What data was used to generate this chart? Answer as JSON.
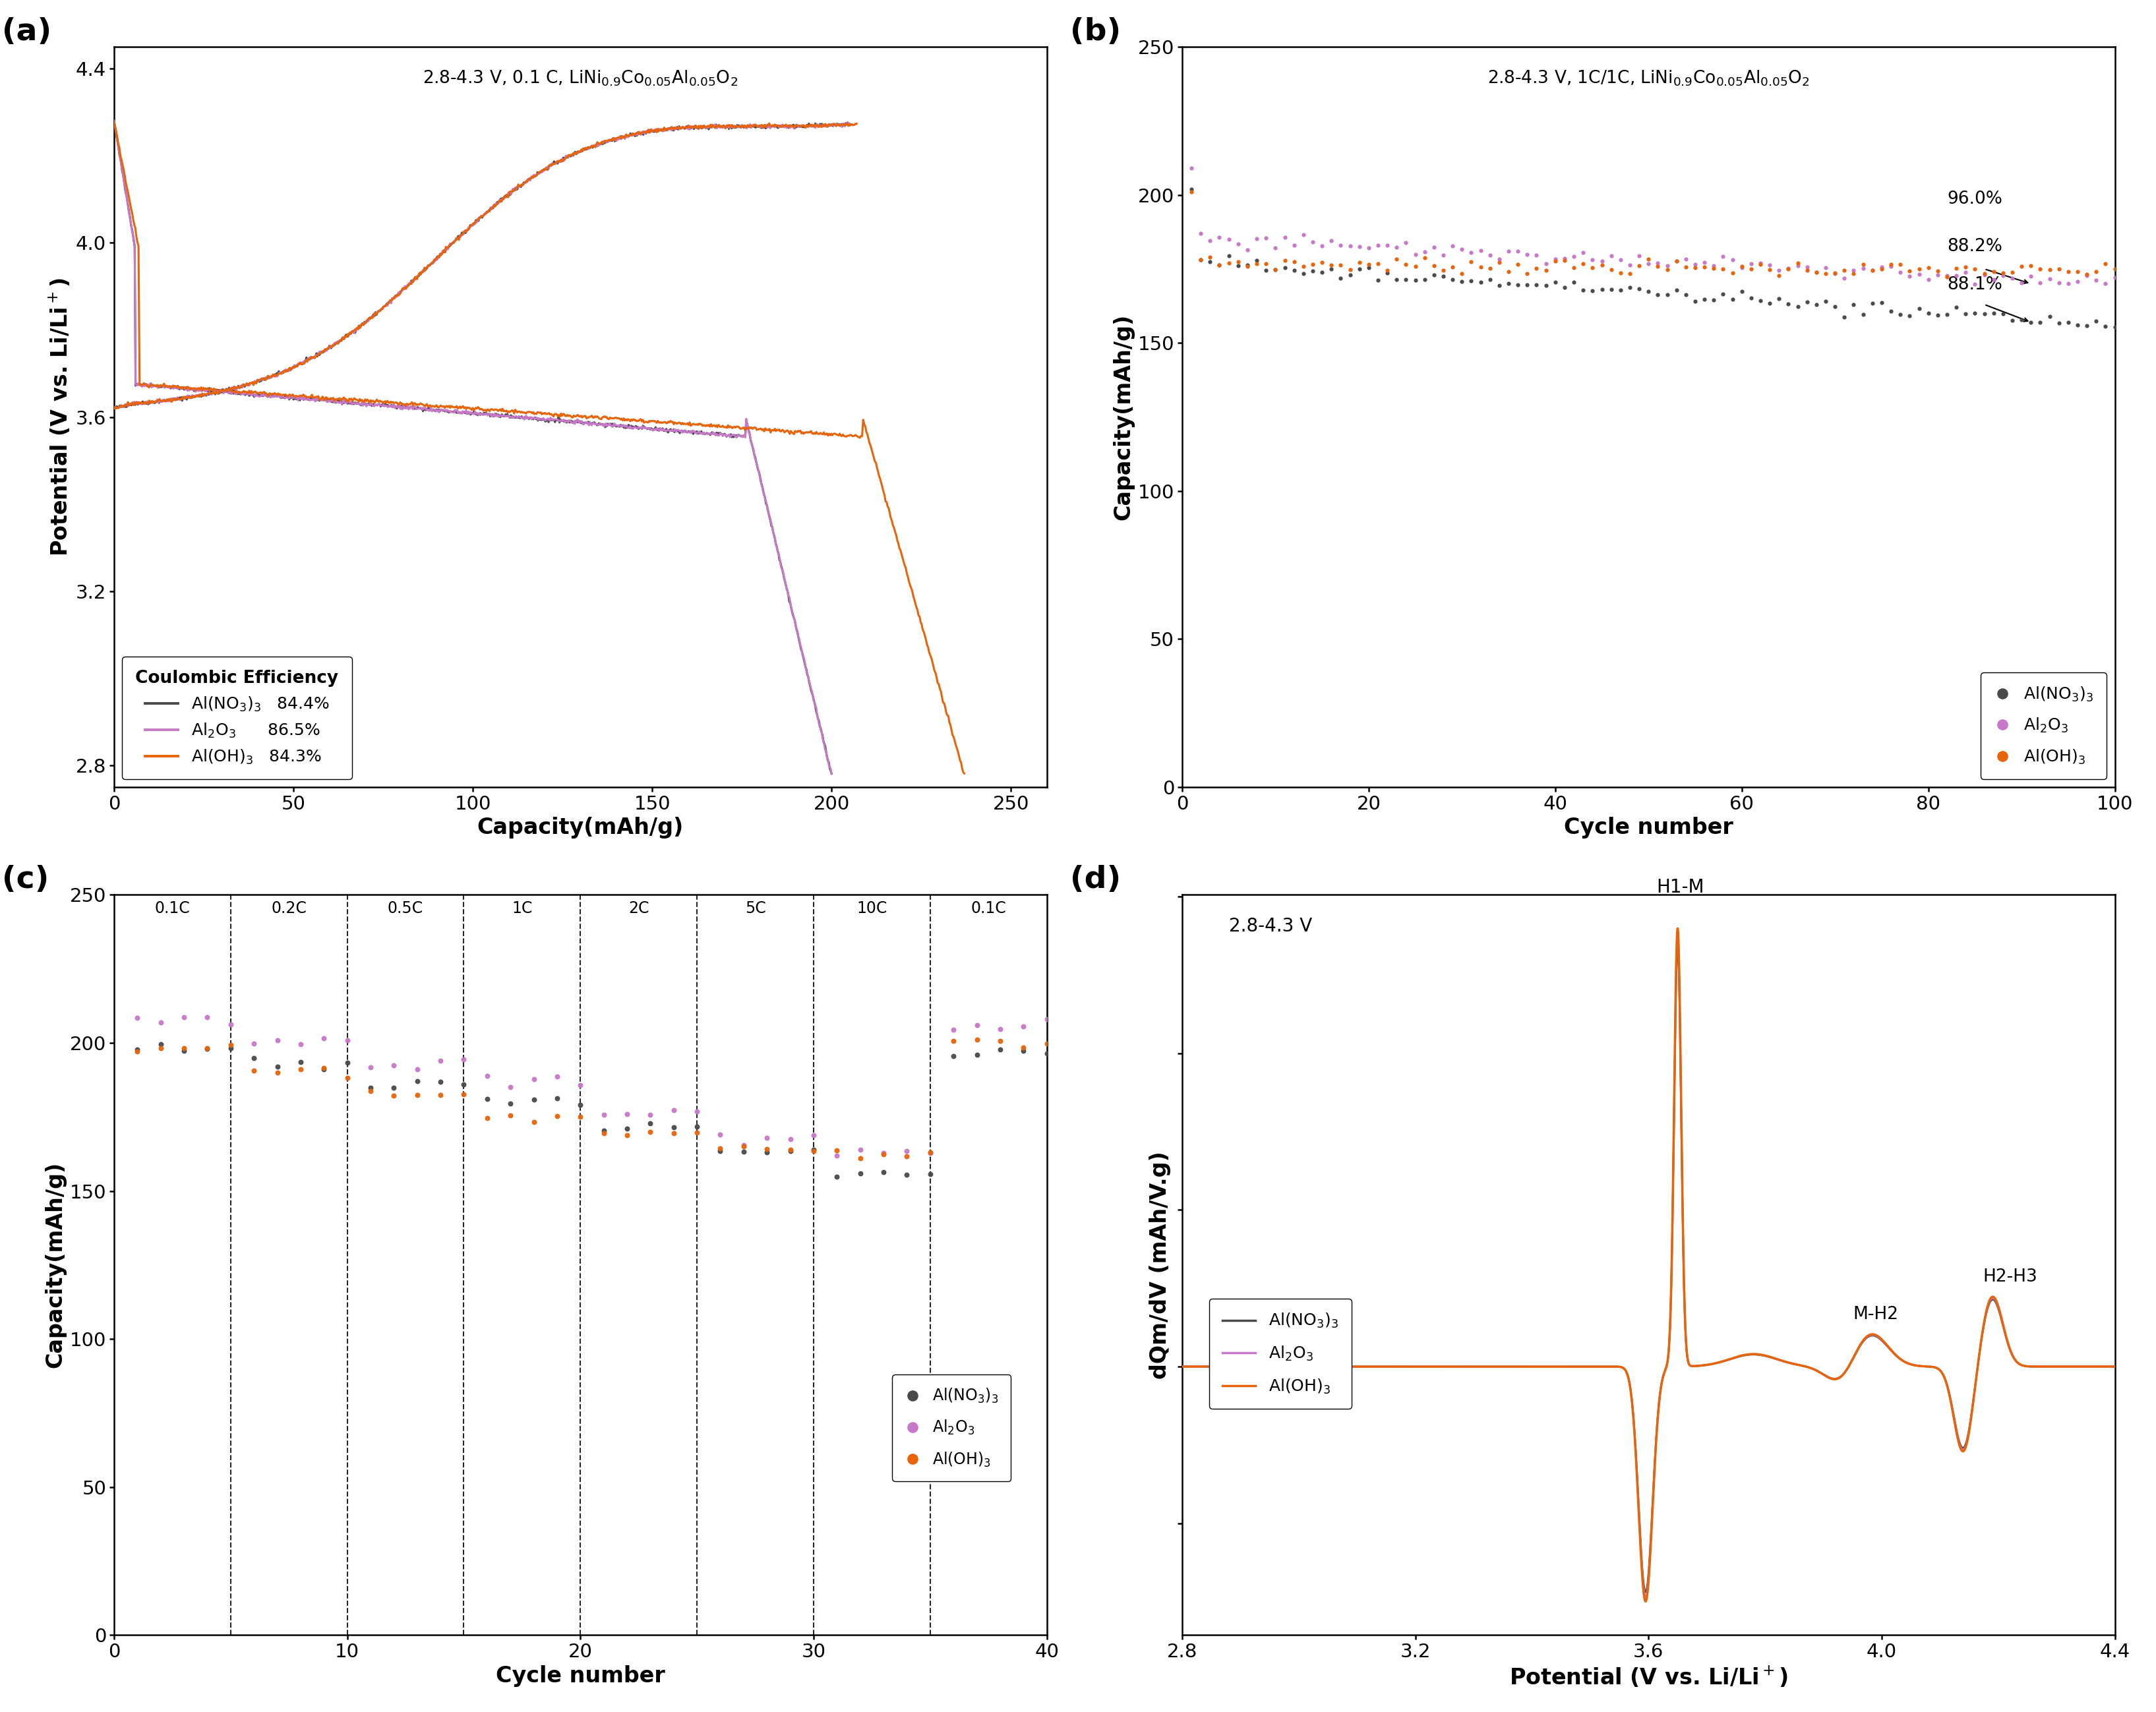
{
  "fig_width": 32.7,
  "fig_height": 25.97,
  "colors": {
    "dark_gray": "#4a4a4a",
    "purple": "#C878C8",
    "orange": "#E8640A"
  },
  "panel_a": {
    "title": "2.8-4.3 V, 0.1 C, LiNi$_{0.9}$Co$_{0.05}$Al$_{0.05}$O$_2$",
    "xlabel": "Capacity(mAh/g)",
    "ylabel": "Potential (V vs. Li/Li$^+$)",
    "xlim": [
      0,
      260
    ],
    "ylim": [
      2.75,
      4.45
    ],
    "xticks": [
      0,
      50,
      100,
      150,
      200,
      250
    ],
    "yticks": [
      2.8,
      3.2,
      3.6,
      4.0,
      4.4
    ],
    "legend_title": "Coulombic Efficiency",
    "legend_entries": [
      "Al(NO$_3$)$_3$   84.4%",
      "Al$_2$O$_3$      86.5%",
      "Al(OH)$_3$   84.3%"
    ]
  },
  "panel_b": {
    "title": "2.8-4.3 V, 1C/1C, LiNi$_{0.9}$Co$_{0.05}$Al$_{0.05}$O$_2$",
    "xlabel": "Cycle number",
    "ylabel": "Capacity(mAh/g)",
    "xlim": [
      0,
      100
    ],
    "ylim": [
      0,
      250
    ],
    "xticks": [
      0,
      20,
      40,
      60,
      80,
      100
    ],
    "yticks": [
      0,
      50,
      100,
      150,
      200,
      250
    ],
    "legend_entries": [
      "Al(NO$_3$)$_3$",
      "Al$_2$O$_3$",
      "Al(OH)$_3$"
    ]
  },
  "panel_c": {
    "xlabel": "Cycle number",
    "ylabel": "Capacity(mAh/g)",
    "xlim": [
      0,
      40
    ],
    "ylim": [
      0,
      250
    ],
    "xticks": [
      0,
      10,
      20,
      30,
      40
    ],
    "yticks": [
      0,
      50,
      100,
      150,
      200,
      250
    ],
    "rate_labels": [
      "0.1C",
      "0.2C",
      "0.5C",
      "1C",
      "2C",
      "5C",
      "10C",
      "0.1C"
    ],
    "dashed_lines_x": [
      5,
      10,
      15,
      20,
      25,
      30,
      35
    ],
    "legend_entries": [
      "Al(NO$_3$)$_3$",
      "Al$_2$O$_3$",
      "Al(OH)$_3$"
    ]
  },
  "panel_d": {
    "xlabel": "Potential (V vs. Li/Li$^+$)",
    "ylabel": "dQm/dV (mAh/V.g)",
    "xlim": [
      2.8,
      4.4
    ],
    "xticks": [
      2.8,
      3.2,
      3.6,
      4.0,
      4.4
    ],
    "title": "2.8-4.3 V",
    "legend_entries": [
      "Al(NO$_3$)$_3$",
      "Al$_2$O$_3$",
      "Al(OH)$_3$"
    ]
  }
}
